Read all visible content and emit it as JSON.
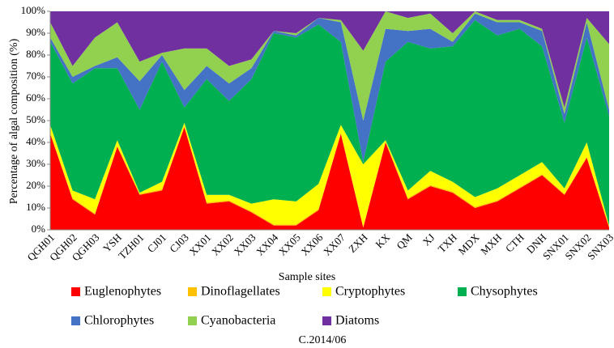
{
  "chart_data": {
    "type": "stacked_area",
    "x_label": "Sample sites",
    "y_label": "Percentage of algal composition (%)",
    "caption": "C.2014/06",
    "categories": [
      "QGH01",
      "QGH02",
      "QGH03",
      "YSH",
      "TZH01",
      "CJ01",
      "CJ03",
      "XX01",
      "XX02",
      "XX03",
      "XX04",
      "XX05",
      "XX06",
      "XX07",
      "ZXH",
      "KX",
      "QM",
      "XJ",
      "TXH",
      "MDX",
      "MXH",
      "CTH",
      "DNH",
      "SNX01",
      "SNX02",
      "SNX03"
    ],
    "ylim": [
      0,
      100
    ],
    "yticks": [
      {
        "value": 0,
        "label": "0%"
      },
      {
        "value": 10,
        "label": "10%"
      },
      {
        "value": 20,
        "label": "20%"
      },
      {
        "value": 30,
        "label": "30%"
      },
      {
        "value": 40,
        "label": "40%"
      },
      {
        "value": 50,
        "label": "50%"
      },
      {
        "value": 60,
        "label": "60%"
      },
      {
        "value": 70,
        "label": "70%"
      },
      {
        "value": 80,
        "label": "80%"
      },
      {
        "value": 90,
        "label": "90%"
      },
      {
        "value": 100,
        "label": "100%"
      }
    ],
    "series": [
      {
        "name": "Euglenophytes",
        "color": "#ff0000",
        "values": [
          44,
          14,
          7,
          38,
          16,
          18,
          47,
          12,
          13,
          8,
          2,
          2,
          9,
          44,
          1,
          40,
          14,
          20,
          17,
          10,
          13,
          19,
          25,
          16,
          33,
          1
        ]
      },
      {
        "name": "Dinoflagellates",
        "color": "#ffc000",
        "values": [
          0.5,
          0.5,
          0.5,
          0.5,
          0.5,
          0.5,
          0.5,
          0.5,
          0.5,
          0.5,
          0.5,
          0.5,
          0.5,
          0.5,
          0.5,
          0.5,
          0.5,
          0.5,
          0.5,
          0.5,
          0.5,
          0.5,
          0.5,
          0.5,
          0.5,
          0.5
        ]
      },
      {
        "name": "Cryptophytes",
        "color": "#ffff00",
        "values": [
          3.5,
          3.5,
          6.5,
          2.5,
          0.5,
          3.5,
          1.5,
          3.5,
          2.5,
          3.5,
          11.5,
          10.5,
          11.5,
          3.5,
          28.5,
          0.5,
          3.5,
          6.5,
          4.5,
          4.5,
          5.5,
          5.5,
          5.5,
          2.5,
          6.5,
          0.5
        ]
      },
      {
        "name": "Chysophytes",
        "color": "#00b050",
        "values": [
          38,
          49,
          60,
          33,
          38,
          55,
          7,
          53,
          43,
          57,
          76,
          75,
          73,
          38,
          1,
          36,
          68,
          56,
          62,
          81,
          70,
          67,
          53,
          30,
          48,
          50
        ]
      },
      {
        "name": "Chlorophytes",
        "color": "#4472c4",
        "values": [
          2,
          3,
          1,
          5,
          13,
          3,
          8,
          6,
          8,
          5,
          1,
          1,
          3,
          9,
          19,
          15,
          5,
          9,
          2,
          3,
          6,
          3,
          7,
          4,
          7,
          3
        ]
      },
      {
        "name": "Cyanobacteria",
        "color": "#92d050",
        "values": [
          7,
          5,
          13,
          16,
          9,
          1,
          19,
          8,
          8,
          4,
          0,
          1,
          0,
          1,
          32,
          8,
          6,
          7,
          4,
          1,
          1,
          1,
          1,
          3,
          2,
          30
        ]
      },
      {
        "name": "Diatoms",
        "color": "#7030a0",
        "values": [
          5,
          25,
          12,
          5,
          23,
          19,
          17,
          17,
          25,
          22,
          9,
          10,
          3,
          4,
          18,
          0,
          3,
          1,
          10,
          0,
          4,
          4,
          8,
          44,
          3,
          15
        ]
      }
    ]
  }
}
